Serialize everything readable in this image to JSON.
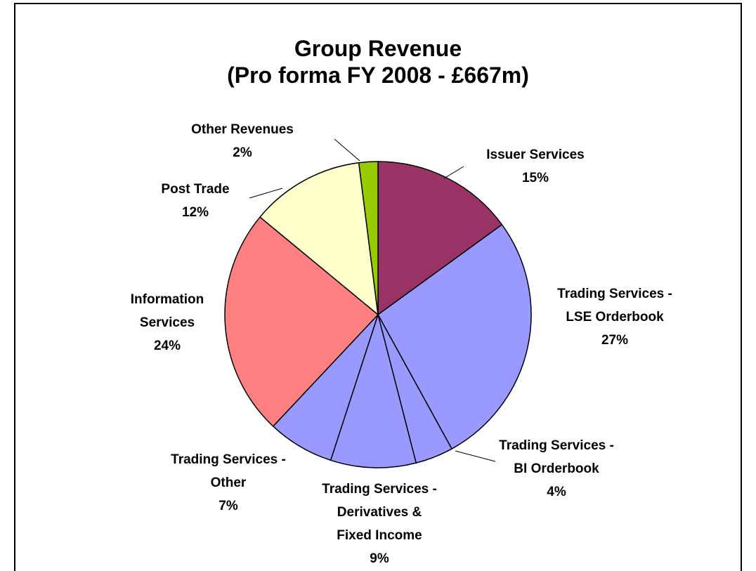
{
  "chart_data": {
    "type": "pie",
    "title": "Group Revenue",
    "subtitle": "(Pro forma FY 2008 - £667m)",
    "categories": [
      "Issuer Services",
      "Trading Services -\nLSE Orderbook",
      "Trading Services -\nBI Orderbook",
      "Trading Services -\nDerivatives &\nFixed Income",
      "Trading Services -\nOther",
      "Information\nServices",
      "Post Trade",
      "Other Revenues"
    ],
    "values": [
      15,
      27,
      4,
      9,
      7,
      24,
      12,
      2
    ],
    "value_labels": [
      "15%",
      "27%",
      "4%",
      "9%",
      "7%",
      "24%",
      "12%",
      "2%"
    ],
    "colors": [
      "#993366",
      "#9999ff",
      "#9999ff",
      "#9999ff",
      "#9999ff",
      "#ff8080",
      "#ffffcc",
      "#99cc00"
    ]
  }
}
